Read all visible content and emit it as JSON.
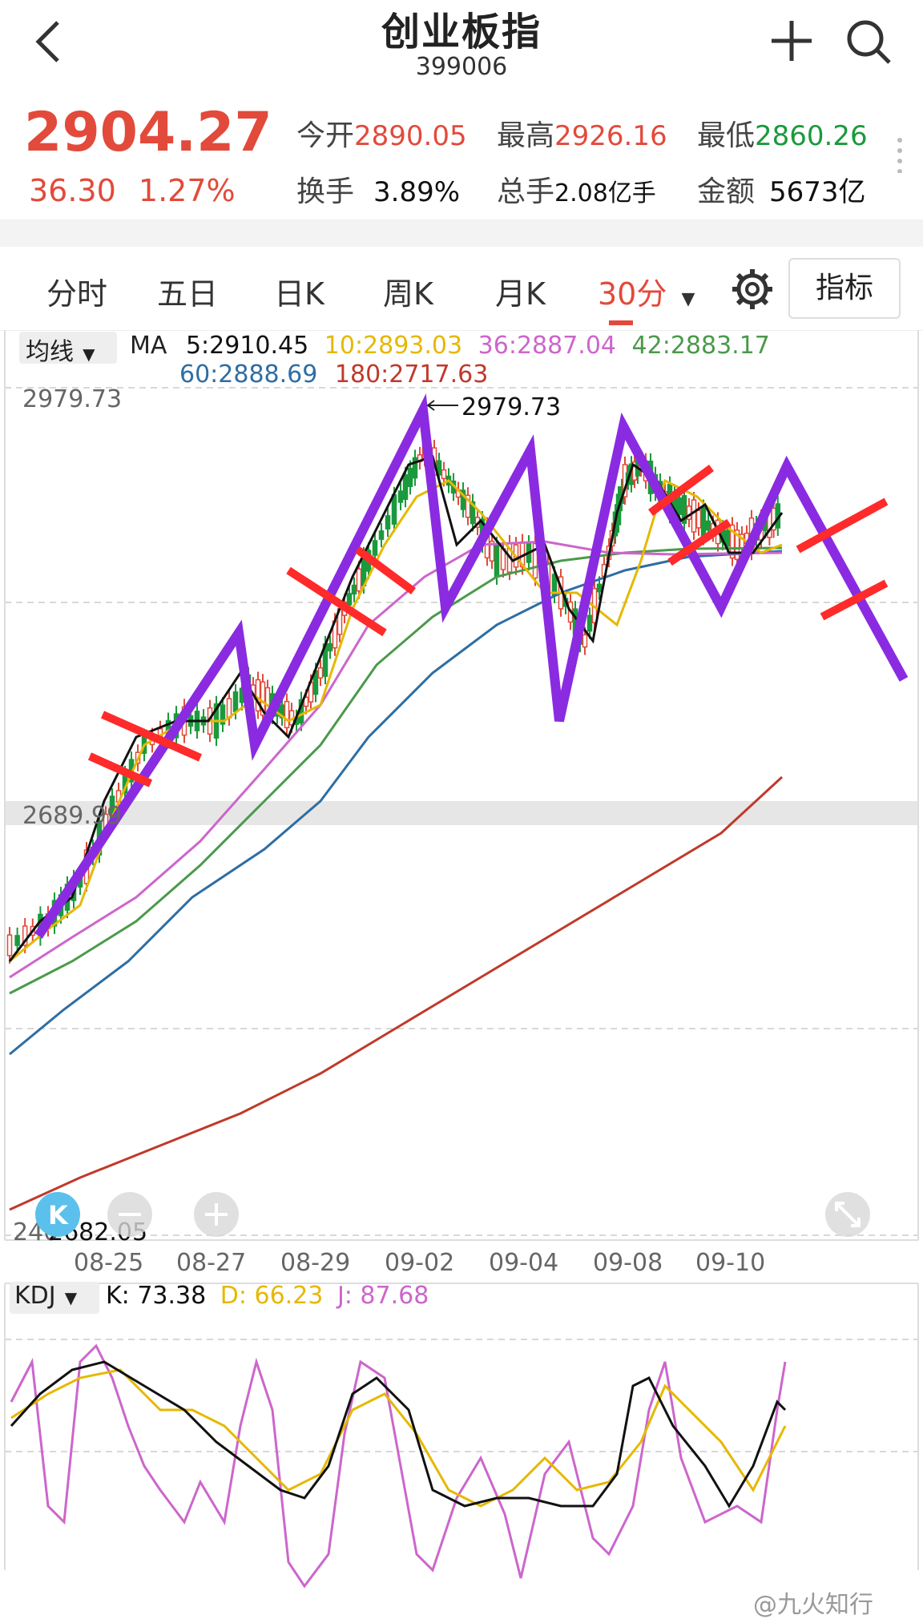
{
  "header": {
    "title": "创业板指",
    "code": "399006"
  },
  "quote": {
    "price": "2904.27",
    "change": "36.30",
    "change_pct": "1.27%",
    "stats": [
      {
        "label": "今开",
        "value": "2890.05",
        "color": "red"
      },
      {
        "label": "最高",
        "value": "2926.16",
        "color": "red"
      },
      {
        "label": "最低",
        "value": "2860.26",
        "color": "green"
      },
      {
        "label": "换手",
        "value": "3.89%",
        "color": "dark"
      },
      {
        "label": "总手",
        "value": "2.08亿手",
        "color": "dark"
      },
      {
        "label": "金额",
        "value": "5673亿",
        "color": "dark"
      }
    ]
  },
  "tabs": [
    {
      "label": "分时"
    },
    {
      "label": "五日"
    },
    {
      "label": "日K"
    },
    {
      "label": "周K"
    },
    {
      "label": "月K"
    },
    {
      "label": "30分",
      "active": true
    }
  ],
  "indicator_button": "指标",
  "ma": {
    "selector": "均线",
    "name": "MA",
    "items": [
      {
        "label": "5:2910.45",
        "color": "#111111"
      },
      {
        "label": "10:2893.03",
        "color": "#e6b800"
      },
      {
        "label": "36:2887.04",
        "color": "#cc66cc"
      },
      {
        "label": "42:2883.17",
        "color": "#4a9a4a"
      },
      {
        "label": "60:2888.69",
        "color": "#2e6da4"
      },
      {
        "label": "180:2717.63",
        "color": "#c0392b"
      }
    ]
  },
  "main_chart": {
    "y_top_label": "2979.73",
    "y_mid_label": "2689.99",
    "high_marker": "2979.73",
    "low_marker": "2682.05",
    "low_prefix": "240",
    "x_ticks": [
      "08-25",
      "08-27",
      "08-29",
      "09-02",
      "09-04",
      "09-08",
      "09-10"
    ]
  },
  "kdj": {
    "selector": "KDJ",
    "k": "K: 73.38",
    "d": "D: 66.23",
    "j": "J: 87.68",
    "colors": {
      "k": "#111111",
      "d": "#e6b800",
      "j": "#cc66cc"
    }
  },
  "watermark": "@九火知行",
  "colors": {
    "up": "#e24a3b",
    "down": "#1a9a3c",
    "annot_purple": "#8a2be2",
    "annot_red": "#ff2a2a"
  }
}
